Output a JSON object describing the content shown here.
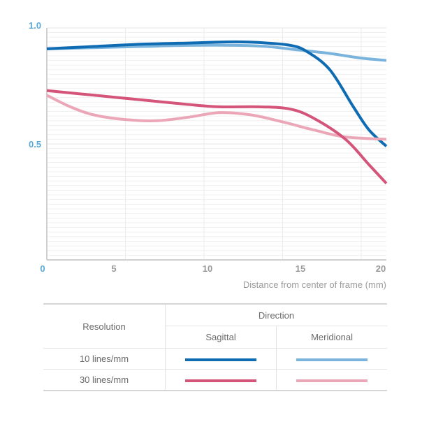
{
  "chart_data": {
    "type": "line",
    "xlabel": "Distance from center of frame (mm)",
    "ylabel": "",
    "xlim": [
      0,
      21.6
    ],
    "ylim": [
      0,
      1.0
    ],
    "x_ticks": [
      0,
      5,
      10,
      15,
      20
    ],
    "x_tick_labels": [
      "0",
      "5",
      "10",
      "15",
      "20"
    ],
    "y_ticks": [
      0.5,
      1.0
    ],
    "y_tick_labels": [
      "0.5",
      "1.0"
    ],
    "grid": true,
    "series": [
      {
        "name": "10 lines/mm Sagittal",
        "color": "#0f6bb2",
        "x": [
          0,
          3,
          6,
          9,
          12,
          14,
          15.5,
          16.5,
          18,
          19.5,
          20.5,
          21.6
        ],
        "y": [
          0.91,
          0.92,
          0.93,
          0.935,
          0.94,
          0.935,
          0.925,
          0.9,
          0.82,
          0.66,
          0.56,
          0.49
        ]
      },
      {
        "name": "10 lines/mm Meridional",
        "color": "#7ab4dc",
        "x": [
          0,
          3,
          6,
          9,
          12,
          14,
          16,
          18,
          20,
          21.6
        ],
        "y": [
          0.91,
          0.915,
          0.92,
          0.925,
          0.925,
          0.92,
          0.905,
          0.89,
          0.87,
          0.86
        ]
      },
      {
        "name": "30 lines/mm Sagittal",
        "color": "#d4547a",
        "x": [
          0,
          3,
          6,
          9,
          11,
          13.5,
          15.5,
          17,
          19,
          20.5,
          21.6
        ],
        "y": [
          0.73,
          0.71,
          0.69,
          0.67,
          0.66,
          0.66,
          0.65,
          0.61,
          0.52,
          0.41,
          0.33
        ]
      },
      {
        "name": "30 lines/mm Meridional",
        "color": "#eba7b8",
        "x": [
          0,
          1.5,
          3,
          5,
          7,
          9,
          11,
          13,
          15,
          17,
          19,
          21.6
        ],
        "y": [
          0.71,
          0.66,
          0.625,
          0.605,
          0.6,
          0.615,
          0.635,
          0.625,
          0.595,
          0.56,
          0.53,
          0.52
        ]
      }
    ],
    "legend": {
      "header_resolution": "Resolution",
      "header_direction": "Direction",
      "sub_sagittal": "Sagittal",
      "sub_meridional": "Meridional",
      "rows": [
        "10 lines/mm",
        "30 lines/mm"
      ]
    }
  }
}
